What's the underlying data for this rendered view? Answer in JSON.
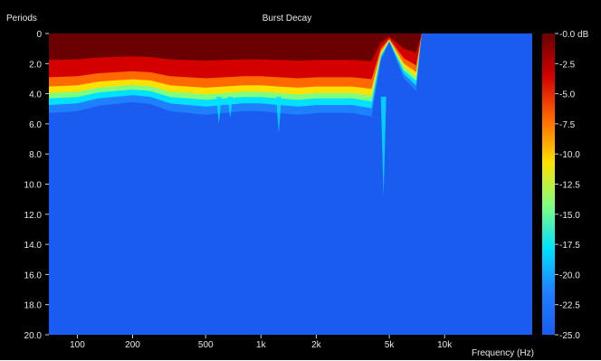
{
  "chart_data": {
    "type": "heatmap",
    "title": "Burst Decay",
    "ylabel": "Periods",
    "xlabel": "Frequency (Hz)",
    "x_scale": "log",
    "xlim": [
      70,
      30000
    ],
    "ylim": [
      0,
      20
    ],
    "y_inverted": true,
    "y_ticks": [
      "0",
      "2.0",
      "4.0",
      "6.0",
      "8.0",
      "10.0",
      "12.0",
      "14.0",
      "16.0",
      "18.0",
      "20.0"
    ],
    "y_tick_values": [
      0,
      2,
      4,
      6,
      8,
      10,
      12,
      14,
      16,
      18,
      20
    ],
    "x_ticks": [
      "100",
      "200",
      "500",
      "1k",
      "2k",
      "5k",
      "10k"
    ],
    "x_tick_values": [
      100,
      200,
      500,
      1000,
      2000,
      5000,
      10000
    ],
    "colorbar": {
      "unit": "dB",
      "range": [
        -25,
        0
      ],
      "tick_labels": [
        "-0.0 dB",
        "-2.5",
        "-5.0",
        "-7.5",
        "-10.0",
        "-12.5",
        "-15.0",
        "-17.5",
        "-20.0",
        "-22.5",
        "-25.0"
      ],
      "tick_values": [
        0,
        -2.5,
        -5,
        -7.5,
        -10,
        -12.5,
        -15,
        -17.5,
        -20,
        -22.5,
        -25
      ],
      "colors": [
        "#6a0000",
        "#d40000",
        "#ff6a00",
        "#ffe000",
        "#7fff7f",
        "#00e0ff",
        "#1e7fff",
        "#1a5cf0"
      ]
    },
    "background_level_db": -25,
    "decay_profile": [
      {
        "freq": 70,
        "periods": 4.4
      },
      {
        "freq": 100,
        "periods": 4.3
      },
      {
        "freq": 130,
        "periods": 4.0
      },
      {
        "freq": 160,
        "periods": 3.9
      },
      {
        "freq": 200,
        "periods": 3.8
      },
      {
        "freq": 250,
        "periods": 3.9
      },
      {
        "freq": 320,
        "periods": 4.3
      },
      {
        "freq": 400,
        "periods": 4.4
      },
      {
        "freq": 500,
        "periods": 4.5
      },
      {
        "freq": 630,
        "periods": 4.4
      },
      {
        "freq": 800,
        "periods": 4.3
      },
      {
        "freq": 1000,
        "periods": 4.3
      },
      {
        "freq": 1250,
        "periods": 4.4
      },
      {
        "freq": 1600,
        "periods": 4.5
      },
      {
        "freq": 2000,
        "periods": 4.4
      },
      {
        "freq": 2500,
        "periods": 4.4
      },
      {
        "freq": 3150,
        "periods": 4.4
      },
      {
        "freq": 4000,
        "periods": 4.6
      },
      {
        "freq": 4500,
        "periods": 1.5
      },
      {
        "freq": 5000,
        "periods": 0.5
      },
      {
        "freq": 6000,
        "periods": 2.5
      },
      {
        "freq": 7000,
        "periods": 3.2
      },
      {
        "freq": 7500,
        "periods": 0
      },
      {
        "freq": 30000,
        "periods": 0
      }
    ],
    "streaks": [
      {
        "freq": 590,
        "periods": 6.0
      },
      {
        "freq": 680,
        "periods": 5.6
      },
      {
        "freq": 1250,
        "periods": 6.6
      },
      {
        "freq": 4650,
        "periods": 10.8
      }
    ]
  }
}
